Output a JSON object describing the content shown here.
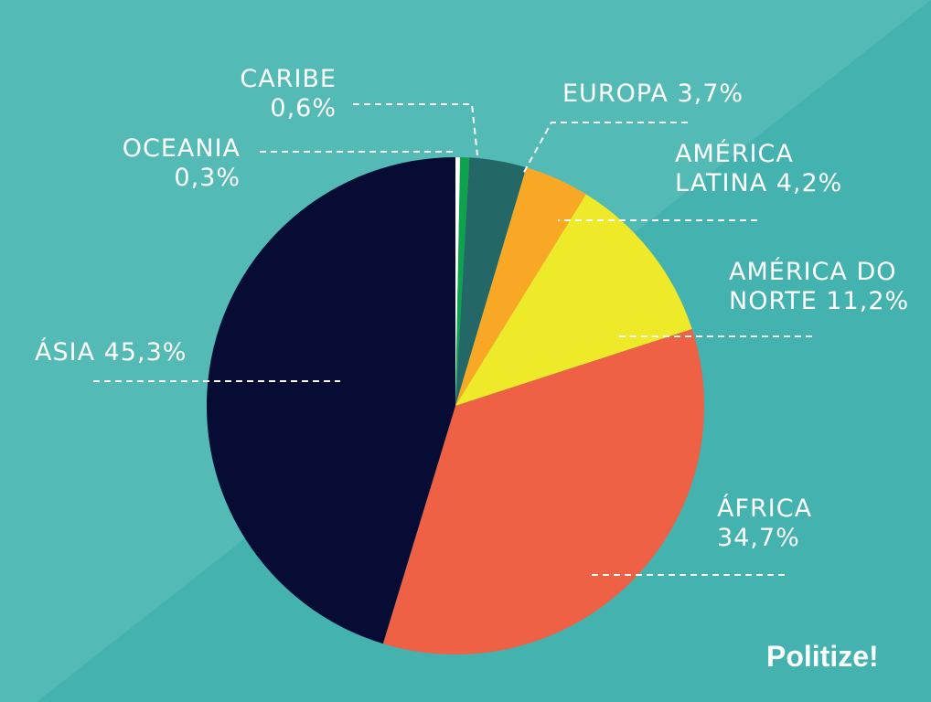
{
  "colors": {
    "bg_light": "#53bab6",
    "bg_dark": "#44b2af",
    "label": "#ffffff"
  },
  "brand": "Politize!",
  "chart_data": {
    "type": "pie",
    "start_angle_deg": 0,
    "direction": "clockwise",
    "slices": [
      {
        "name": "OCEANIA",
        "value": 0.3,
        "value_label": "0,3%",
        "color": "#ffffff"
      },
      {
        "name": "CARIBE",
        "value": 0.6,
        "value_label": "0,6%",
        "color": "#0da24c"
      },
      {
        "name": "EUROPA",
        "value": 3.7,
        "value_label": "3,7%",
        "color": "#236866"
      },
      {
        "name": "AMÉRICA LATINA",
        "value": 4.2,
        "value_label": "4,2%",
        "color": "#f9a825"
      },
      {
        "name": "AMÉRICA DO NORTE",
        "value": 11.2,
        "value_label": "11,2%",
        "color": "#eeea29"
      },
      {
        "name": "ÁFRICA",
        "value": 34.7,
        "value_label": "34,7%",
        "color": "#ee6145"
      },
      {
        "name": "ÁSIA",
        "value": 45.3,
        "value_label": "45,3%",
        "color": "#070c35"
      }
    ]
  },
  "labels": {
    "caribe": {
      "line1": "CARIBE",
      "line2": "0,6%"
    },
    "oceania": {
      "line1": "OCEANIA",
      "line2": "0,3%"
    },
    "europa": {
      "line1": "EUROPA  3,7%"
    },
    "america_latina": {
      "line1": "AMÉRICA",
      "line2": "LATINA 4,2%"
    },
    "america_norte": {
      "line1": "AMÉRICA DO",
      "line2": "NORTE  11,2%"
    },
    "asia": {
      "line1": "ÁSIA  45,3%"
    },
    "africa": {
      "line1": "ÁFRICA",
      "line2": "34,7%"
    }
  }
}
